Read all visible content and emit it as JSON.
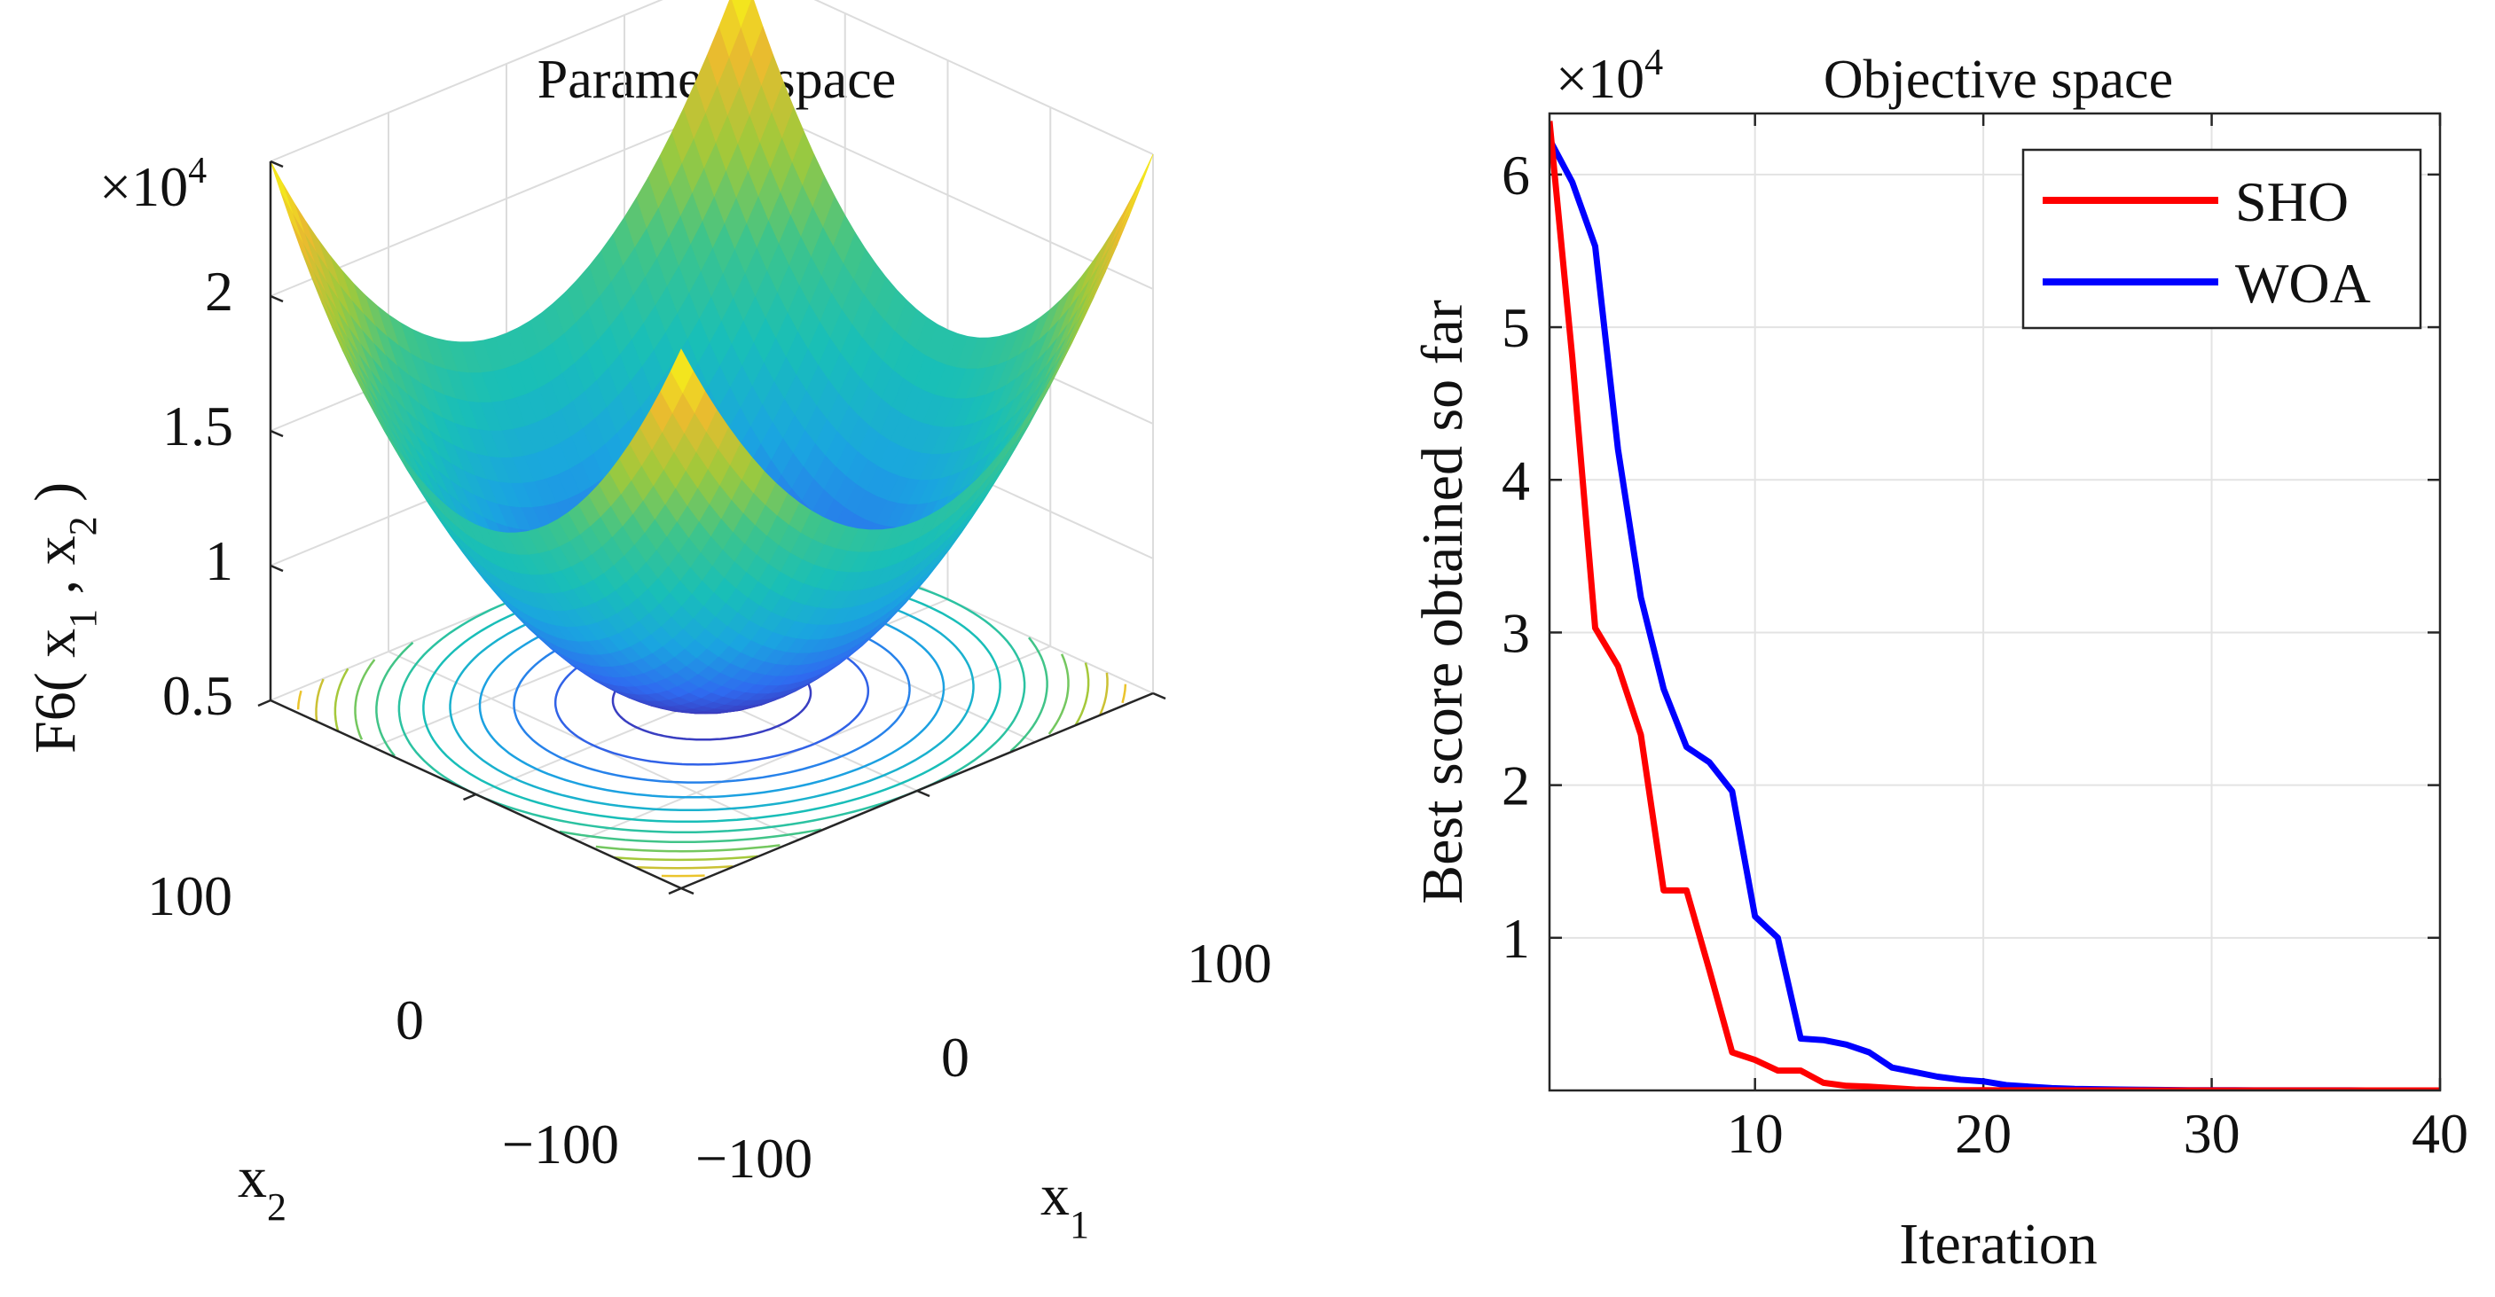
{
  "chart_data": [
    {
      "type": "surface",
      "title": "Parameter space",
      "zlabel": "F6( x",
      "zlabel_sub1": "1",
      "zlabel_mid": " , x",
      "zlabel_sub2": "2",
      "zlabel_end": " )",
      "xlabel": "x",
      "xlabel_sub": "1",
      "ylabel": "x",
      "ylabel_sub": "2",
      "exponent_base": "×10",
      "exponent_power": "4",
      "z_ticks": [
        "0.5",
        "1",
        "1.5",
        "2"
      ],
      "z_tick_values": [
        5000,
        10000,
        15000,
        20000
      ],
      "x1_ticks": [
        "−100",
        "0",
        "100"
      ],
      "x2_ticks": [
        "−100",
        "0",
        "100"
      ],
      "x1_range": [
        -100,
        100
      ],
      "x2_range": [
        -100,
        100
      ],
      "zlim": [
        0,
        20000
      ],
      "function": "x1^2 + x2^2",
      "contour_levels": [
        1000,
        2500,
        4000,
        5500,
        7000,
        8500,
        10000,
        11500,
        13000,
        14500,
        16000,
        17500
      ],
      "colormap": [
        "#3e26a8",
        "#2f6bf0",
        "#1aa5e0",
        "#19bfb7",
        "#3fc48a",
        "#9fc93b",
        "#e9bc2f",
        "#f9fb15"
      ]
    },
    {
      "type": "line",
      "title": "Objective space",
      "xlabel": "Iteration",
      "ylabel": "Best score obtained so far",
      "exponent_base": "×10",
      "exponent_power": "4",
      "xlim": [
        1,
        40
      ],
      "ylim": [
        0,
        64000
      ],
      "x_ticks": [
        "10",
        "20",
        "30",
        "40"
      ],
      "x_tick_values": [
        10,
        20,
        30,
        40
      ],
      "y_ticks": [
        "1",
        "2",
        "3",
        "4",
        "5",
        "6"
      ],
      "y_tick_values": [
        10000,
        20000,
        30000,
        40000,
        50000,
        60000
      ],
      "grid": true,
      "legend_position": "top-right",
      "x": [
        1,
        2,
        3,
        4,
        5,
        6,
        7,
        8,
        9,
        10,
        11,
        12,
        13,
        14,
        15,
        16,
        17,
        18,
        19,
        20,
        21,
        22,
        23,
        24,
        25,
        26,
        27,
        28,
        29,
        30,
        31,
        32,
        33,
        34,
        35,
        36,
        37,
        38,
        39,
        40
      ],
      "series": [
        {
          "name": "SHO",
          "color": "#ff0000",
          "values": [
            63500,
            48000,
            30300,
            27800,
            23300,
            13100,
            13100,
            7900,
            2500,
            2000,
            1300,
            1300,
            500,
            300,
            250,
            150,
            60,
            30,
            20,
            10,
            5,
            5,
            5,
            0,
            0,
            0,
            0,
            0,
            0,
            0,
            0,
            0,
            0,
            0,
            0,
            0,
            0,
            0,
            0,
            0
          ]
        },
        {
          "name": "WOA",
          "color": "#0000ff",
          "values": [
            62300,
            59500,
            55300,
            42000,
            32300,
            26300,
            22500,
            21500,
            19600,
            11400,
            10000,
            3400,
            3300,
            3000,
            2500,
            1500,
            1200,
            900,
            700,
            600,
            350,
            250,
            150,
            100,
            80,
            60,
            40,
            30,
            20,
            15,
            10,
            8,
            6,
            5,
            4,
            3,
            2,
            1,
            1,
            1
          ]
        }
      ]
    }
  ]
}
